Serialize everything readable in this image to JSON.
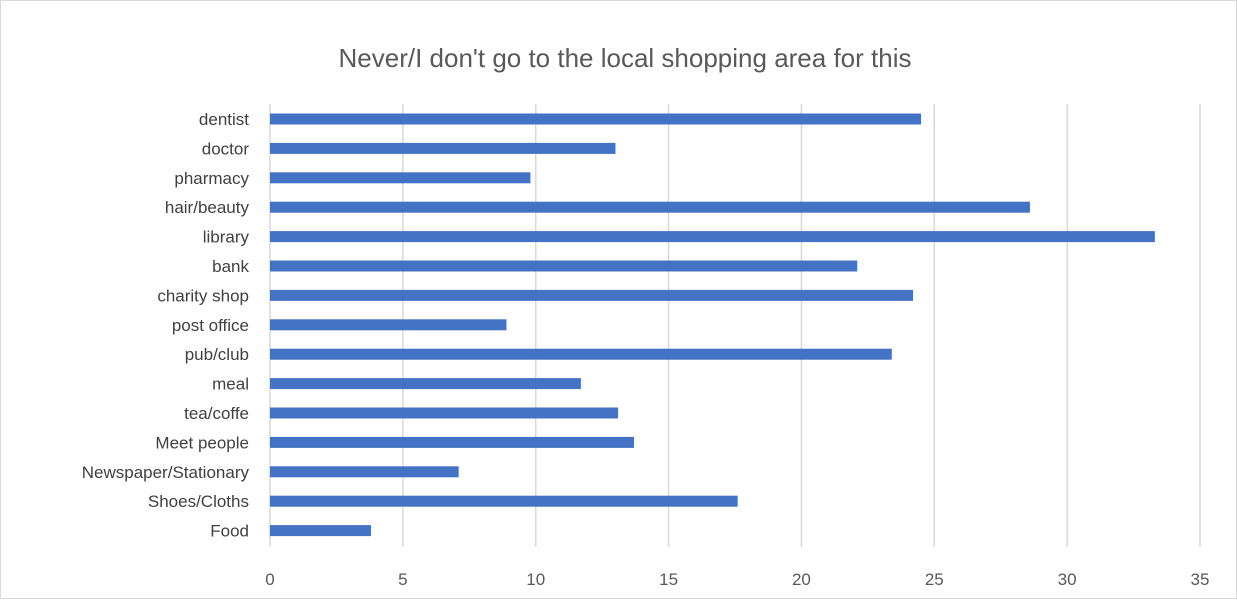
{
  "chart_data": {
    "type": "bar",
    "orientation": "horizontal",
    "title": "Never/I don't go to the local shopping area for this",
    "xlabel": "",
    "ylabel": "",
    "categories": [
      "dentist",
      "doctor",
      "pharmacy",
      "hair/beauty",
      "library",
      "bank",
      "charity shop",
      "post office",
      "pub/club",
      "meal",
      "tea/coffe",
      "Meet people",
      "Newspaper/Stationary",
      "Shoes/Cloths",
      "Food"
    ],
    "values": [
      24.5,
      13.0,
      9.8,
      28.6,
      33.3,
      22.1,
      24.2,
      8.9,
      23.4,
      11.7,
      13.1,
      13.7,
      7.1,
      17.6,
      3.8
    ],
    "xlim": [
      0,
      35
    ],
    "xticks": [
      "0",
      "5",
      "10",
      "15",
      "20",
      "25",
      "30",
      "35"
    ],
    "grid": "vertical",
    "legend": "none",
    "bar_color": "#4472c4",
    "grid_color": "#d9d9d9"
  }
}
